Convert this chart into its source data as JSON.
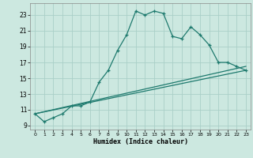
{
  "title": "",
  "xlabel": "Humidex (Indice chaleur)",
  "bg_color": "#cce8e0",
  "grid_color": "#aacfc8",
  "line_color": "#1e7a6e",
  "xlim": [
    -0.5,
    23.5
  ],
  "ylim": [
    8.5,
    24.5
  ],
  "xticks": [
    0,
    1,
    2,
    3,
    4,
    5,
    6,
    7,
    8,
    9,
    10,
    11,
    12,
    13,
    14,
    15,
    16,
    17,
    18,
    19,
    20,
    21,
    22,
    23
  ],
  "yticks": [
    9,
    11,
    13,
    15,
    17,
    19,
    21,
    23
  ],
  "line1_x": [
    0,
    1,
    2,
    3,
    4,
    5,
    6,
    7,
    8,
    9,
    10,
    11,
    12,
    13,
    14,
    15,
    16,
    17,
    18,
    19,
    20,
    21,
    22,
    23
  ],
  "line1_y": [
    10.5,
    9.5,
    10.0,
    10.5,
    11.5,
    11.5,
    12.0,
    14.5,
    16.0,
    18.5,
    20.5,
    23.5,
    23.0,
    23.5,
    23.2,
    20.3,
    20.0,
    21.5,
    20.5,
    19.2,
    17.0,
    17.0,
    16.5,
    16.0
  ],
  "line2_x": [
    0,
    23
  ],
  "line2_y": [
    10.5,
    16.5
  ],
  "line3_x": [
    0,
    23
  ],
  "line3_y": [
    10.5,
    16.0
  ]
}
